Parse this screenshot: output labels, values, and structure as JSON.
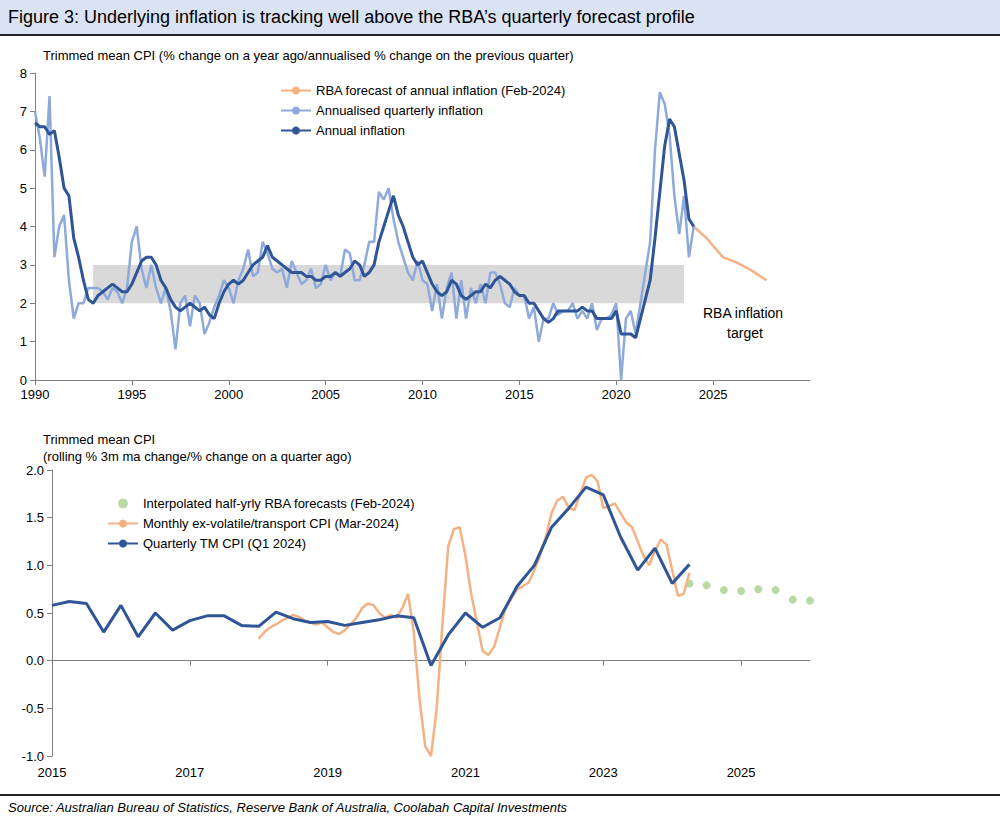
{
  "title": "Figure 3: Underlying inflation is tracking well above the RBA’s quarterly forecast profile",
  "source": "Source: Australian Bureau of Statistics, Reserve Bank of Australia, Coolabah Capital Investments",
  "chart_data": [
    {
      "type": "line",
      "title": "Trimmed mean CPI (% change on a year ago/annualised % change on the previous quarter)",
      "x": [
        1990,
        1990.25,
        1990.5,
        1990.75,
        1991,
        1991.25,
        1991.5,
        1991.75,
        1992,
        1992.25,
        1992.5,
        1992.75,
        1993,
        1993.25,
        1993.5,
        1993.75,
        1994,
        1994.25,
        1994.5,
        1994.75,
        1995,
        1995.25,
        1995.5,
        1995.75,
        1996,
        1996.25,
        1996.5,
        1996.75,
        1997,
        1997.25,
        1997.5,
        1997.75,
        1998,
        1998.25,
        1998.5,
        1998.75,
        1999,
        1999.25,
        1999.5,
        1999.75,
        2000,
        2000.25,
        2000.5,
        2000.75,
        2001,
        2001.25,
        2001.5,
        2001.75,
        2002,
        2002.25,
        2002.5,
        2002.75,
        2003,
        2003.25,
        2003.5,
        2003.75,
        2004,
        2004.25,
        2004.5,
        2004.75,
        2005,
        2005.25,
        2005.5,
        2005.75,
        2006,
        2006.25,
        2006.5,
        2006.75,
        2007,
        2007.25,
        2007.5,
        2007.75,
        2008,
        2008.25,
        2008.5,
        2008.75,
        2009,
        2009.25,
        2009.5,
        2009.75,
        2010,
        2010.25,
        2010.5,
        2010.75,
        2011,
        2011.25,
        2011.5,
        2011.75,
        2012,
        2012.25,
        2012.5,
        2012.75,
        2013,
        2013.25,
        2013.5,
        2013.75,
        2014,
        2014.25,
        2014.5,
        2014.75,
        2015,
        2015.25,
        2015.5,
        2015.75,
        2016,
        2016.25,
        2016.5,
        2016.75,
        2017,
        2017.25,
        2017.5,
        2017.75,
        2018,
        2018.25,
        2018.5,
        2018.75,
        2019,
        2019.25,
        2019.5,
        2019.75,
        2020,
        2020.25,
        2020.5,
        2020.75,
        2021,
        2021.25,
        2021.5,
        2021.75,
        2022,
        2022.25,
        2022.5,
        2022.75,
        2023,
        2023.25,
        2023.5,
        2023.75,
        2024
      ],
      "series": [
        {
          "name": "RBA forecast of annual inflation (Feb-2024)",
          "color": "#f4b183",
          "x": [
            2024,
            2024.75,
            2025.5,
            2026.25,
            2027,
            2027.75
          ],
          "values": [
            4.0,
            3.65,
            3.2,
            3.05,
            2.85,
            2.6
          ]
        },
        {
          "name": "Annualised quarterly inflation",
          "color": "#8eaadb",
          "values": [
            7.0,
            6.3,
            5.3,
            7.4,
            3.2,
            4.0,
            4.3,
            2.6,
            1.6,
            2.0,
            2.0,
            2.4,
            2.4,
            2.4,
            2.3,
            2.1,
            2.4,
            2.3,
            2.0,
            2.4,
            3.6,
            4.0,
            2.9,
            2.4,
            3.0,
            2.4,
            2.0,
            2.4,
            1.8,
            0.8,
            2.0,
            2.2,
            1.4,
            2.2,
            2.0,
            1.2,
            1.5,
            1.9,
            2.2,
            2.6,
            2.4,
            2.0,
            2.6,
            2.9,
            3.4,
            2.7,
            2.8,
            3.6,
            3.3,
            2.9,
            2.8,
            2.9,
            2.4,
            3.1,
            2.8,
            2.5,
            2.6,
            2.9,
            2.4,
            2.5,
            3.0,
            2.6,
            2.8,
            2.7,
            3.4,
            3.3,
            2.6,
            2.6,
            3.0,
            3.6,
            3.6,
            4.9,
            4.7,
            5.0,
            4.2,
            3.6,
            3.2,
            2.8,
            2.6,
            3.1,
            2.6,
            2.5,
            1.8,
            2.5,
            1.6,
            2.4,
            2.8,
            1.6,
            2.6,
            1.6,
            2.4,
            2.0,
            2.5,
            2.0,
            2.8,
            2.8,
            2.5,
            2.0,
            1.9,
            2.4,
            2.2,
            2.2,
            1.6,
            1.9,
            1.0,
            1.6,
            1.6,
            2.0,
            1.7,
            1.8,
            1.8,
            2.0,
            1.6,
            1.8,
            1.6,
            2.0,
            1.3,
            1.6,
            1.6,
            1.7,
            2.0,
            0.0,
            1.6,
            1.8,
            1.2,
            2.0,
            2.8,
            3.6,
            6.0,
            7.5,
            7.2,
            6.4,
            4.8,
            3.8,
            4.8,
            3.2,
            4.0
          ]
        },
        {
          "name": "Annual inflation",
          "color": "#2f5597",
          "values": [
            6.7,
            6.6,
            6.6,
            6.4,
            6.5,
            5.8,
            5.0,
            4.8,
            3.7,
            3.2,
            2.6,
            2.1,
            2.0,
            2.2,
            2.3,
            2.4,
            2.5,
            2.4,
            2.3,
            2.3,
            2.5,
            2.8,
            3.1,
            3.2,
            3.2,
            3.0,
            2.6,
            2.4,
            2.1,
            1.9,
            1.8,
            1.9,
            2.0,
            1.9,
            1.8,
            1.9,
            1.7,
            1.6,
            2.0,
            2.3,
            2.5,
            2.6,
            2.5,
            2.6,
            2.8,
            3.0,
            3.1,
            3.2,
            3.5,
            3.2,
            3.1,
            3.0,
            2.9,
            2.8,
            2.8,
            2.8,
            2.7,
            2.7,
            2.6,
            2.6,
            2.7,
            2.7,
            2.8,
            2.7,
            2.8,
            2.9,
            3.1,
            3.0,
            2.7,
            2.8,
            3.0,
            3.6,
            4.0,
            4.4,
            4.8,
            4.3,
            4.0,
            3.6,
            3.2,
            3.0,
            3.1,
            2.8,
            2.5,
            2.3,
            2.2,
            2.3,
            2.6,
            2.5,
            2.2,
            2.1,
            2.2,
            2.3,
            2.3,
            2.5,
            2.4,
            2.6,
            2.7,
            2.6,
            2.5,
            2.3,
            2.2,
            2.2,
            2.0,
            2.0,
            1.8,
            1.6,
            1.5,
            1.6,
            1.8,
            1.8,
            1.8,
            1.8,
            1.8,
            1.9,
            1.8,
            1.8,
            1.6,
            1.6,
            1.6,
            1.6,
            1.8,
            1.2,
            1.2,
            1.2,
            1.1,
            1.6,
            2.1,
            2.6,
            3.7,
            4.9,
            6.1,
            6.8,
            6.6,
            5.9,
            5.2,
            4.2,
            4.0
          ]
        }
      ],
      "target_band": {
        "label": "RBA inflation target",
        "x": [
          1993,
          2023.5
        ],
        "y": [
          2,
          3
        ],
        "color": "#d9d9d9"
      },
      "xlim": [
        1990,
        2030
      ],
      "xticks": [
        1990,
        1995,
        2000,
        2005,
        2010,
        2015,
        2020,
        2025
      ],
      "ylim": [
        0,
        8
      ],
      "yticks": [
        0,
        1,
        2,
        3,
        4,
        5,
        6,
        7,
        8
      ],
      "grid": false,
      "legend": "upper center"
    },
    {
      "type": "line",
      "title": "Trimmed mean CPI",
      "subtitle": "(rolling % 3m ma change/% change on a quarter ago)",
      "series": [
        {
          "name": "Interpolated half-yrly RBA forecasts (Feb-2024)",
          "type": "scatter",
          "marker": "circle",
          "color": "#a9d18e",
          "x": [
            2024.25,
            2024.5,
            2024.75,
            2025,
            2025.25,
            2025.5,
            2025.75,
            2026
          ],
          "values": [
            0.81,
            0.79,
            0.74,
            0.73,
            0.75,
            0.74,
            0.64,
            0.63
          ]
        },
        {
          "name": "Monthly ex-volatile/transport CPI (Mar-2024)",
          "color": "#f4b183",
          "x": [
            2018,
            2018.083,
            2018.167,
            2018.25,
            2018.333,
            2018.417,
            2018.5,
            2018.583,
            2018.667,
            2018.75,
            2018.833,
            2018.917,
            2019,
            2019.083,
            2019.167,
            2019.25,
            2019.333,
            2019.417,
            2019.5,
            2019.583,
            2019.667,
            2019.75,
            2019.833,
            2019.917,
            2020,
            2020.083,
            2020.167,
            2020.25,
            2020.333,
            2020.417,
            2020.5,
            2020.583,
            2020.667,
            2020.75,
            2020.833,
            2020.917,
            2021,
            2021.083,
            2021.167,
            2021.25,
            2021.333,
            2021.417,
            2021.5,
            2021.583,
            2021.667,
            2021.75,
            2021.833,
            2021.917,
            2022,
            2022.083,
            2022.167,
            2022.25,
            2022.333,
            2022.417,
            2022.5,
            2022.583,
            2022.667,
            2022.75,
            2022.833,
            2022.917,
            2023,
            2023.083,
            2023.167,
            2023.25,
            2023.333,
            2023.417,
            2023.5,
            2023.583,
            2023.667,
            2023.75,
            2023.833,
            2023.917,
            2024,
            2024.083,
            2024.167,
            2024.25
          ],
          "values": [
            0.23,
            0.3,
            0.35,
            0.38,
            0.42,
            0.45,
            0.48,
            0.46,
            0.42,
            0.4,
            0.38,
            0.4,
            0.35,
            0.3,
            0.28,
            0.32,
            0.38,
            0.45,
            0.55,
            0.6,
            0.58,
            0.5,
            0.45,
            0.48,
            0.45,
            0.55,
            0.7,
            0.3,
            -0.4,
            -0.9,
            -1.0,
            -0.5,
            0.4,
            1.2,
            1.38,
            1.4,
            1.1,
            0.7,
            0.4,
            0.1,
            0.06,
            0.15,
            0.35,
            0.55,
            0.65,
            0.75,
            0.78,
            0.82,
            0.95,
            1.1,
            1.3,
            1.55,
            1.68,
            1.72,
            1.6,
            1.58,
            1.75,
            1.92,
            1.95,
            1.88,
            1.6,
            1.62,
            1.65,
            1.55,
            1.45,
            1.4,
            1.25,
            1.1,
            1.0,
            1.15,
            1.27,
            1.22,
            0.95,
            0.68,
            0.7,
            0.92
          ]
        },
        {
          "name": "Quarterly TM CPI (Q1 2024)",
          "color": "#2f5597",
          "x": [
            2015,
            2015.25,
            2015.5,
            2015.75,
            2016,
            2016.25,
            2016.5,
            2016.75,
            2017,
            2017.25,
            2017.5,
            2017.75,
            2018,
            2018.25,
            2018.5,
            2018.75,
            2019,
            2019.25,
            2019.5,
            2019.75,
            2020,
            2020.25,
            2020.5,
            2020.75,
            2021,
            2021.25,
            2021.5,
            2021.75,
            2022,
            2022.25,
            2022.5,
            2022.75,
            2023,
            2023.25,
            2023.5,
            2023.75,
            2024,
            2024.25
          ],
          "values": [
            0.58,
            0.62,
            0.6,
            0.3,
            0.58,
            0.25,
            0.5,
            0.32,
            0.42,
            0.47,
            0.47,
            0.37,
            0.36,
            0.51,
            0.44,
            0.4,
            0.41,
            0.37,
            0.4,
            0.43,
            0.47,
            0.45,
            -0.05,
            0.27,
            0.5,
            0.35,
            0.45,
            0.78,
            1.0,
            1.4,
            1.6,
            1.82,
            1.74,
            1.3,
            0.95,
            1.18,
            0.81,
            1.01
          ]
        }
      ],
      "xlim": [
        2015,
        2026
      ],
      "xticks": [
        2015,
        2017,
        2019,
        2021,
        2023,
        2025
      ],
      "ylim": [
        -1,
        2
      ],
      "yticks": [
        {
          "value": -1,
          "label": "-1.0"
        },
        -0.5,
        {
          "value": 0,
          "label": "0.0"
        },
        0.5,
        {
          "value": 1,
          "label": "1.0"
        },
        1.5,
        {
          "value": 2,
          "label": "2.0"
        }
      ],
      "grid": false,
      "legend": "upper left"
    }
  ]
}
